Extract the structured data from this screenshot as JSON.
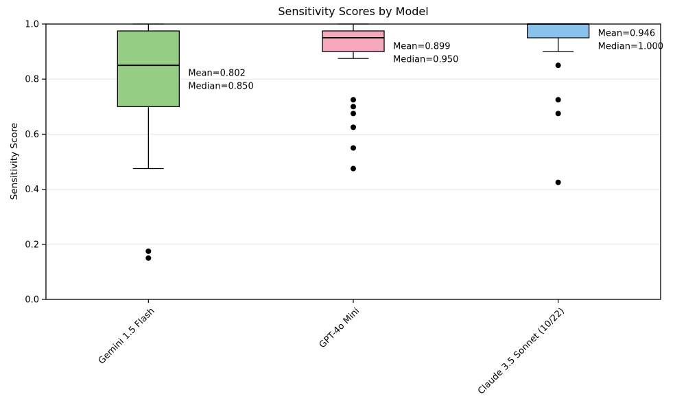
{
  "chart_data": {
    "type": "boxplot",
    "title": "Sensitivity Scores by Model",
    "ylabel": "Sensitivity Score",
    "xlabel": "",
    "ylim": [
      0.0,
      1.0
    ],
    "grid": "horizontal",
    "grid_color": "#e6e6e6",
    "yticks": [
      {
        "value": 0.0,
        "label": "0.0"
      },
      {
        "value": 0.2,
        "label": "0.2"
      },
      {
        "value": 0.4,
        "label": "0.4"
      },
      {
        "value": 0.6,
        "label": "0.6"
      },
      {
        "value": 0.8,
        "label": "0.8"
      },
      {
        "value": 1.0,
        "label": "1.0"
      }
    ],
    "categories": [
      "Gemini 1.5 Flash",
      "GPT-4o Mini",
      "Claude 3.5 Sonnet (10/22)"
    ],
    "series": [
      {
        "name": "Gemini 1.5 Flash",
        "box_color": "#94cd83",
        "whisker_low": 0.475,
        "q1": 0.7,
        "median": 0.85,
        "q3": 0.975,
        "whisker_high": 1.0,
        "outliers": [
          0.175,
          0.15
        ],
        "mean": 0.802,
        "annotation_lines": [
          "Mean=0.802",
          "Median=0.850"
        ]
      },
      {
        "name": "GPT-4o Mini",
        "box_color": "#f7a8bc",
        "whisker_low": 0.875,
        "q1": 0.9,
        "median": 0.95,
        "q3": 0.975,
        "whisker_high": 1.0,
        "outliers": [
          0.725,
          0.7,
          0.675,
          0.625,
          0.55,
          0.475
        ],
        "mean": 0.899,
        "annotation_lines": [
          "Mean=0.899",
          "Median=0.950"
        ]
      },
      {
        "name": "Claude 3.5 Sonnet (10/22)",
        "box_color": "#87c3ec",
        "whisker_low": 0.9,
        "q1": 0.95,
        "median": 1.0,
        "q3": 1.0,
        "whisker_high": 1.0,
        "outliers": [
          0.85,
          0.725,
          0.675,
          0.425
        ],
        "mean": 0.946,
        "annotation_lines": [
          "Mean=0.946",
          "Median=1.000"
        ]
      }
    ]
  }
}
